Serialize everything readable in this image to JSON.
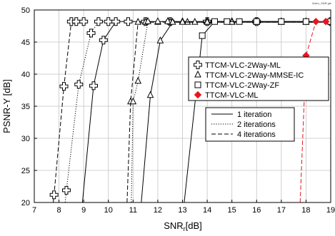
{
  "chart_data": {
    "type": "line",
    "xlabel": "SNR",
    "xlabel_sub": "r",
    "xlabel_suffix": "[dB]",
    "ylabel": "PSNR-Y [dB]",
    "xlim": [
      7,
      19
    ],
    "ylim": [
      20,
      50
    ],
    "xticks": [
      7,
      8,
      9,
      10,
      11,
      12,
      13,
      14,
      15,
      16,
      17,
      18,
      19
    ],
    "yticks": [
      20,
      25,
      30,
      35,
      40,
      45,
      50
    ],
    "grid": true,
    "corner_note": "Video_SNR.gle",
    "legends": [
      {
        "placement": "upper-right",
        "entries": [
          {
            "label": "TTCM-VLC-2Way-ML",
            "marker": "plus-square"
          },
          {
            "label": "TTCM-VLC-2Way-MMSE-IC",
            "marker": "triangle"
          },
          {
            "label": "TTCM-VLC-2Way-ZF",
            "marker": "square"
          },
          {
            "label": "TTCM-VLC-ML",
            "marker": "diamond",
            "color": "#e8141e"
          }
        ]
      },
      {
        "placement": "center-right",
        "entries": [
          {
            "label": "1 iteration",
            "dash": "solid"
          },
          {
            "label": "2 iterations",
            "dash": "dotted"
          },
          {
            "label": "4 iterations",
            "dash": "dashed"
          }
        ]
      }
    ],
    "series": [
      {
        "marker": "plus-square",
        "dash": "dashed",
        "color": "#000000",
        "x": [
          7.6,
          7.8,
          8.2,
          8.5,
          8.7,
          9.0
        ],
        "y": [
          14.0,
          21.2,
          38.1,
          48.2,
          48.2,
          48.2
        ]
      },
      {
        "marker": "plus-square",
        "dash": "dotted",
        "color": "#000000",
        "x": [
          8.1,
          8.3,
          8.8,
          9.3,
          9.6,
          10.0
        ],
        "y": [
          14.0,
          21.9,
          38.4,
          46.4,
          48.2,
          48.2
        ]
      },
      {
        "marker": "plus-square",
        "dash": "solid",
        "color": "#000000",
        "x": [
          8.8,
          9.4,
          9.8,
          10.3,
          10.8,
          11.5,
          12.5,
          14.0,
          16.0,
          19.0
        ],
        "y": [
          14.0,
          38.2,
          45.3,
          48.2,
          48.2,
          48.2,
          48.2,
          48.2,
          48.2,
          48.2
        ]
      },
      {
        "marker": "triangle",
        "dash": "dashed",
        "color": "#000000",
        "x": [
          10.7,
          10.9,
          11.2,
          11.5,
          12.0,
          12.5,
          13.2,
          14.0,
          15.0,
          16.0,
          17.0,
          18.0,
          19.0
        ],
        "y": [
          14.0,
          35.7,
          48.1,
          48.1,
          48.1,
          48.1,
          48.1,
          48.1,
          48.1,
          48.1,
          48.1,
          48.1,
          48.1
        ]
      },
      {
        "marker": "triangle",
        "dash": "dotted",
        "color": "#000000",
        "x": [
          10.9,
          11.0,
          11.2,
          11.6,
          12.0,
          12.4,
          13.0,
          14.0,
          15.0,
          16.0,
          17.0,
          18.0,
          19.0
        ],
        "y": [
          14.0,
          35.7,
          38.9,
          48.2,
          48.2,
          48.2,
          48.2,
          48.2,
          48.2,
          48.2,
          48.2,
          48.2,
          48.2
        ]
      },
      {
        "marker": "triangle",
        "dash": "solid",
        "color": "#000000",
        "x": [
          11.2,
          11.7,
          12.1,
          12.6,
          13.0,
          13.5,
          14.0,
          15.0,
          16.0,
          17.0,
          18.0,
          19.0
        ],
        "y": [
          14.0,
          36.7,
          45.2,
          48.1,
          48.1,
          48.1,
          48.1,
          48.1,
          48.1,
          48.1,
          48.1,
          48.1
        ]
      },
      {
        "marker": "square",
        "dash": "solid",
        "color": "#000000",
        "x": [
          12.9,
          13.8,
          14.3,
          14.8,
          15.3,
          16.0,
          17.0,
          18.0,
          19.0
        ],
        "y": [
          14.0,
          46.0,
          48.2,
          48.2,
          48.2,
          48.2,
          48.2,
          48.2,
          48.2
        ]
      },
      {
        "marker": "diamond",
        "dash": "dashed",
        "color": "#e8141e",
        "x": [
          17.7,
          18.0,
          18.4,
          18.8
        ],
        "y": [
          14.0,
          42.9,
          48.2,
          48.2
        ]
      }
    ]
  }
}
